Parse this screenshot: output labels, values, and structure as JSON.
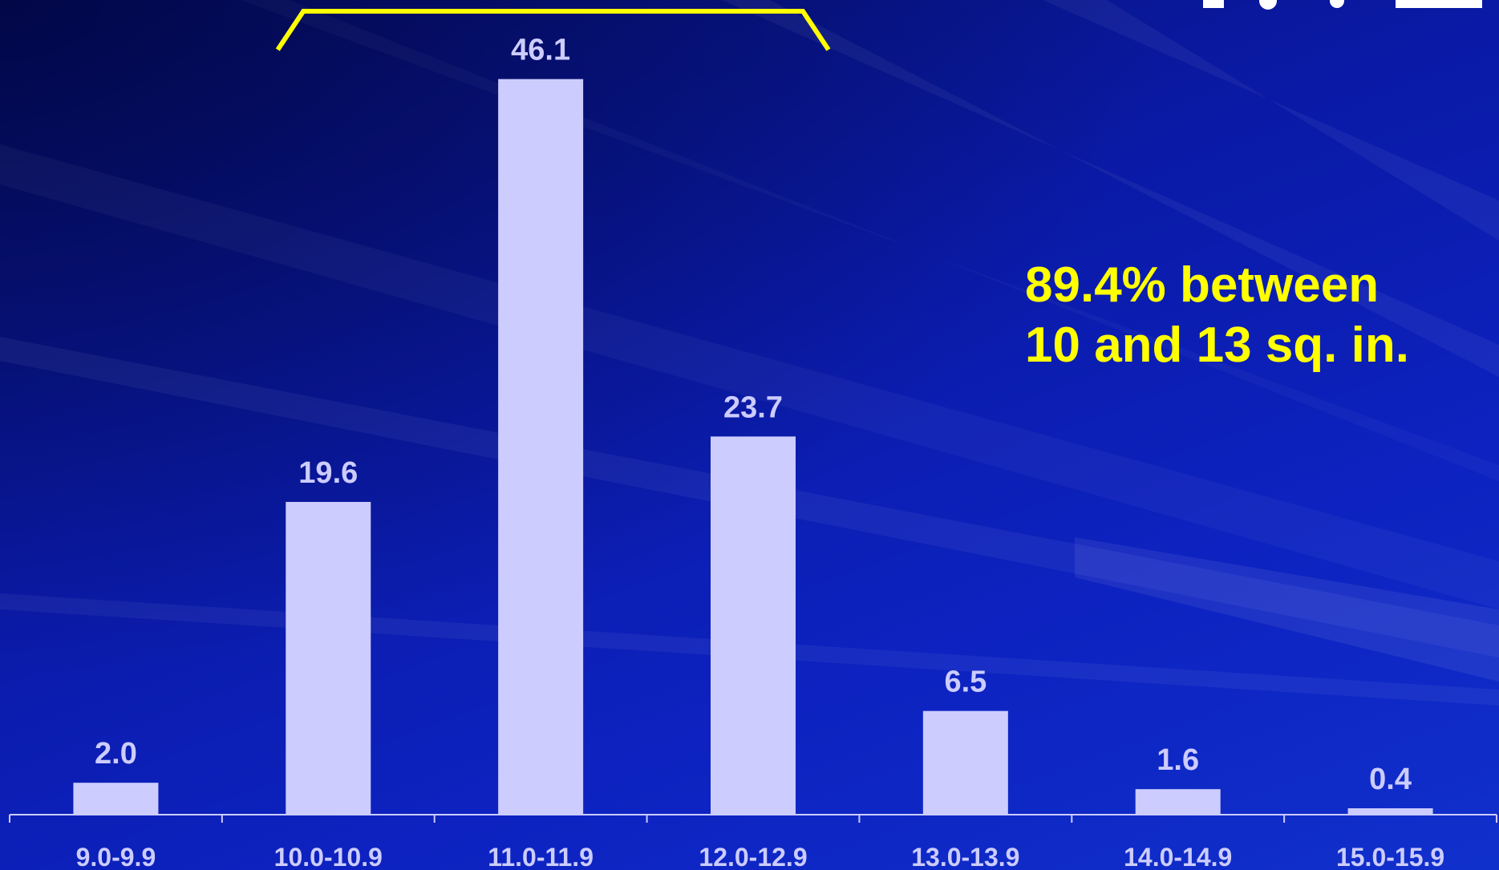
{
  "chart_data": {
    "type": "bar",
    "categories": [
      "9.0-9.9",
      "10.0-10.9",
      "11.0-11.9",
      "12.0-12.9",
      "13.0-13.9",
      "14.0-14.9",
      "15.0-15.9"
    ],
    "values": [
      2.0,
      19.6,
      46.1,
      23.7,
      6.5,
      1.6,
      0.4
    ],
    "data_labels": [
      "2.0",
      "19.6",
      "46.1",
      "23.7",
      "6.5",
      "1.6",
      "0.4"
    ],
    "ylim": [
      0,
      48
    ],
    "grid": false,
    "bracket_span": [
      "10.0-10.9",
      "12.0-12.9"
    ],
    "annotation": [
      "89.4% between",
      "10 and 13 sq. in."
    ]
  },
  "colors": {
    "background": "#0a1aa6",
    "bar": "#ccccff",
    "label": "#ccccff",
    "annotation": "#ffff00",
    "bracket": "#ffff00",
    "axis": "#ccccff"
  }
}
